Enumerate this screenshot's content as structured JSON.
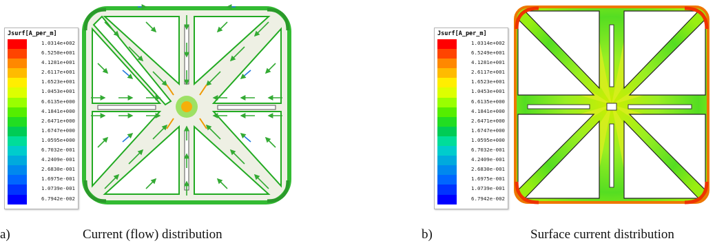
{
  "figure_a": {
    "legend_title": "Jsurf[A_per_m]",
    "legend_values": [
      "1.0314e+002",
      "6.5250e+001",
      "4.1281e+001",
      "2.6117e+001",
      "1.6523e+001",
      "1.0453e+001",
      "6.6135e+000",
      "4.1841e+000",
      "2.6471e+000",
      "1.6747e+000",
      "1.0595e+000",
      "6.7032e-001",
      "4.2409e-001",
      "2.6830e-001",
      "1.6975e-001",
      "1.0739e-001",
      "6.7942e-002"
    ],
    "caption_label": "a)",
    "caption_text": "Current (flow) distribution"
  },
  "figure_b": {
    "legend_title": "Jsurf[A_per_m]",
    "legend_values": [
      "1.0314e+002",
      "6.5249e+001",
      "4.1281e+001",
      "2.6117e+001",
      "1.6523e+001",
      "1.0453e+001",
      "6.6135e+000",
      "4.1841e+000",
      "2.6471e+000",
      "1.6747e+000",
      "1.0595e+000",
      "6.7032e-001",
      "4.2409e-001",
      "2.6830e-001",
      "1.6975e-001",
      "1.0739e-001",
      "6.7942e-002"
    ],
    "caption_label": "b)",
    "caption_text": "Surface current distribution"
  },
  "colormap": [
    "#ff0000",
    "#ff4400",
    "#ff8800",
    "#ffbb00",
    "#ffee00",
    "#ddff00",
    "#99ff00",
    "#55ee00",
    "#22dd22",
    "#00cc55",
    "#00dd99",
    "#00cccc",
    "#00aadd",
    "#0088ee",
    "#0066ff",
    "#0033ff",
    "#0000ff"
  ]
}
